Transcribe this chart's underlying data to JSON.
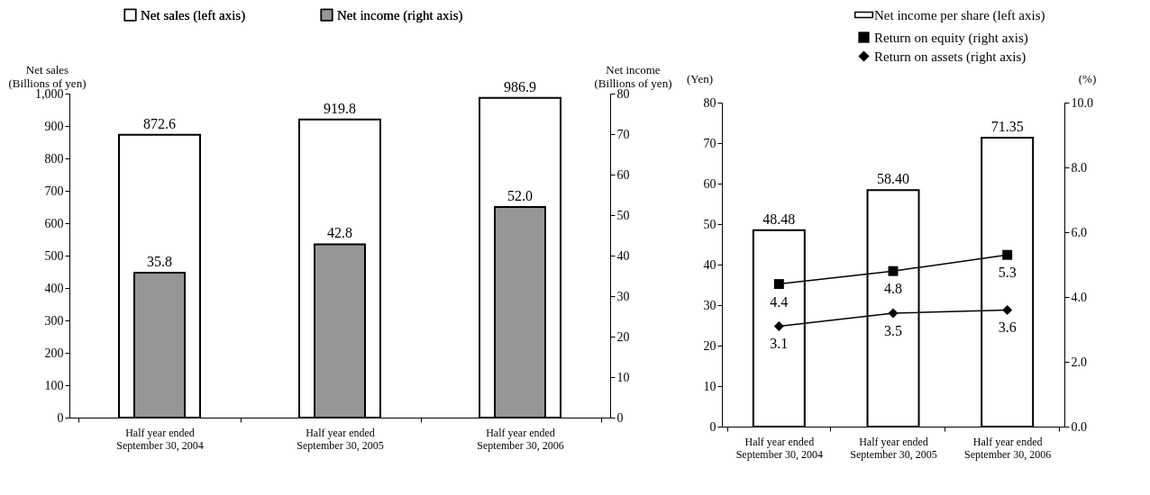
{
  "chart_data": [
    {
      "type": "bar",
      "categories": [
        "Half year ended\nSeptember 30, 2004",
        "Half year ended\nSeptember 30, 2005",
        "Half year ended\nSeptember 30, 2006"
      ],
      "ylabel": "Net sales\n(Billions of yen)",
      "y2label": "Net income\n(Billions of yen)",
      "ylim": [
        0,
        1000
      ],
      "yticks": [
        0,
        100,
        200,
        300,
        400,
        500,
        600,
        700,
        800,
        900,
        {
          "value": 1000,
          "label": "1,000"
        }
      ],
      "y2lim": [
        0,
        80
      ],
      "y2ticks": [
        0,
        10,
        20,
        30,
        40,
        50,
        60,
        70,
        80
      ],
      "series": [
        {
          "name": "Net sales (left axis)",
          "color": "#ffffff",
          "values": [
            872.6,
            919.8,
            986.9
          ],
          "value_labels": [
            "872.6",
            "919.8",
            "986.9"
          ]
        },
        {
          "name": "Net income (right axis)",
          "color": "#969696",
          "axis": "y2",
          "values": [
            35.8,
            42.8,
            52.0
          ],
          "value_labels": [
            "35.8",
            "42.8",
            "52.0"
          ]
        }
      ],
      "legend": "top",
      "grid": false
    },
    {
      "type": "bar",
      "categories": [
        "Half year ended\nSeptember 30, 2004",
        "Half year ended\nSeptember 30, 2005",
        "Half year ended\nSeptember 30, 2006"
      ],
      "ylabel": "(Yen)",
      "y2label": "(%)",
      "ylim": [
        0,
        80
      ],
      "yticks": [
        0,
        10,
        20,
        30,
        40,
        50,
        60,
        70,
        80
      ],
      "y2lim": [
        0,
        10
      ],
      "y2ticks": [
        {
          "value": 0,
          "label": "0.0"
        },
        {
          "value": 2,
          "label": "2.0"
        },
        {
          "value": 4,
          "label": "4.0"
        },
        {
          "value": 6,
          "label": "6.0"
        },
        {
          "value": 8,
          "label": "8.0"
        },
        {
          "value": 10,
          "label": "10.0"
        }
      ],
      "series": [
        {
          "name": "Net income per share (left axis)",
          "color": "#ffffff",
          "values": [
            48.48,
            58.4,
            71.35
          ],
          "value_labels": [
            "48.48",
            "58.40",
            "71.35"
          ]
        },
        {
          "name": "Return on equity (right axis)",
          "type": "line",
          "color": "#000000",
          "axis": "y2",
          "marker": "square",
          "values": [
            4.4,
            4.8,
            5.3
          ],
          "value_labels": [
            "4.4",
            "4.8",
            "5.3"
          ]
        },
        {
          "name": "Return on assets (right axis)",
          "type": "line",
          "color": "#000000",
          "axis": "y2",
          "marker": "diamond",
          "values": [
            3.1,
            3.5,
            3.6
          ],
          "value_labels": [
            "3.1",
            "3.5",
            "3.6"
          ]
        }
      ],
      "legend": "top right",
      "grid": false
    }
  ]
}
